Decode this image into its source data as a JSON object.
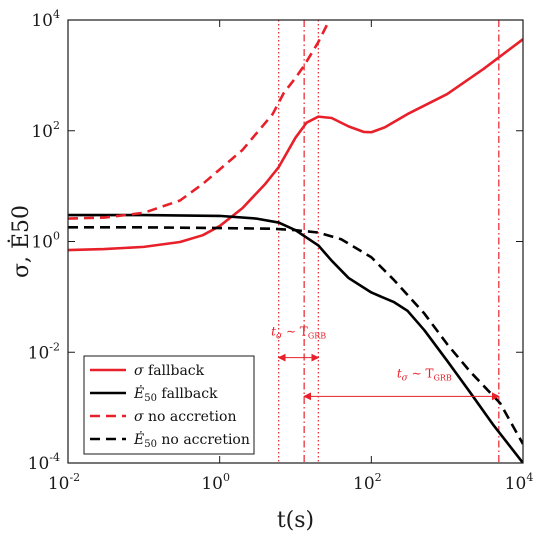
{
  "chart_data": {
    "type": "line",
    "title": "",
    "xlabel": "t(s)",
    "ylabel": "σ, Ė50",
    "xscale": "log",
    "yscale": "log",
    "xlim": [
      0.01,
      10000
    ],
    "ylim": [
      0.0001,
      10000
    ],
    "grid": false,
    "legend_placement": "bottom-left",
    "x_ticks": [
      {
        "base": "10",
        "exp": "-2",
        "value": 0.01
      },
      {
        "base": "10",
        "exp": "0",
        "value": 1
      },
      {
        "base": "10",
        "exp": "2",
        "value": 100
      },
      {
        "base": "10",
        "exp": "4",
        "value": 10000
      }
    ],
    "y_ticks": [
      {
        "base": "10",
        "exp": "-4",
        "value": 0.0001
      },
      {
        "base": "10",
        "exp": "-2",
        "value": 0.01
      },
      {
        "base": "10",
        "exp": "0",
        "value": 1
      },
      {
        "base": "10",
        "exp": "2",
        "value": 100
      },
      {
        "base": "10",
        "exp": "4",
        "value": 10000
      }
    ],
    "series": [
      {
        "name": "σ fallback",
        "color": "#e8202a",
        "dash": "solid",
        "points": [
          [
            0.01,
            0.7
          ],
          [
            0.03,
            0.73
          ],
          [
            0.1,
            0.8
          ],
          [
            0.3,
            0.98
          ],
          [
            0.6,
            1.3
          ],
          [
            1,
            1.9
          ],
          [
            2,
            4
          ],
          [
            4,
            11
          ],
          [
            6,
            22
          ],
          [
            10,
            75
          ],
          [
            14,
            140
          ],
          [
            20,
            180
          ],
          [
            30,
            170
          ],
          [
            50,
            120
          ],
          [
            80,
            95
          ],
          [
            100,
            94
          ],
          [
            150,
            115
          ],
          [
            300,
            200
          ],
          [
            1000,
            460
          ],
          [
            3000,
            1300
          ],
          [
            10000,
            4500
          ]
        ]
      },
      {
        "name": "Ė50 fallback",
        "color": "#000000",
        "dash": "solid",
        "points": [
          [
            0.01,
            3.0
          ],
          [
            0.1,
            3.0
          ],
          [
            1,
            2.9
          ],
          [
            3,
            2.6
          ],
          [
            6,
            2.2
          ],
          [
            10,
            1.6
          ],
          [
            20,
            0.85
          ],
          [
            30,
            0.45
          ],
          [
            50,
            0.22
          ],
          [
            100,
            0.12
          ],
          [
            200,
            0.08
          ],
          [
            300,
            0.056
          ],
          [
            500,
            0.025
          ],
          [
            1000,
            0.007
          ],
          [
            2000,
            0.0019
          ],
          [
            4000,
            0.0005
          ],
          [
            10000,
            0.0001
          ]
        ]
      },
      {
        "name": "σ no accretion",
        "color": "#e8202a",
        "dash": "dashed",
        "points": [
          [
            0.01,
            2.6
          ],
          [
            0.03,
            2.7
          ],
          [
            0.1,
            3.3
          ],
          [
            0.3,
            5.5
          ],
          [
            0.6,
            11
          ],
          [
            1,
            20
          ],
          [
            2,
            45
          ],
          [
            5,
            200
          ],
          [
            7,
            480
          ],
          [
            10,
            900
          ],
          [
            13,
            1500
          ],
          [
            20,
            4000
          ],
          [
            28,
            10000
          ]
        ]
      },
      {
        "name": "Ė50 no accretion",
        "color": "#000000",
        "dash": "dashed",
        "points": [
          [
            0.01,
            1.8
          ],
          [
            0.1,
            1.8
          ],
          [
            1,
            1.75
          ],
          [
            5,
            1.7
          ],
          [
            10,
            1.6
          ],
          [
            20,
            1.45
          ],
          [
            40,
            1.1
          ],
          [
            100,
            0.52
          ],
          [
            200,
            0.2
          ],
          [
            500,
            0.05
          ],
          [
            1000,
            0.014
          ],
          [
            2000,
            0.0045
          ],
          [
            5000,
            0.0012
          ],
          [
            10000,
            0.00022
          ]
        ]
      }
    ],
    "vertical_lines": [
      {
        "x": 6.0,
        "style": "dotted",
        "color": "#e8202a"
      },
      {
        "x": 13.0,
        "style": "dashdot",
        "color": "#e8202a"
      },
      {
        "x": 20.0,
        "style": "dotted",
        "color": "#e8202a"
      },
      {
        "x": 4800,
        "style": "dashdot",
        "color": "#e8202a"
      }
    ],
    "annotations": [
      {
        "text_main": "t",
        "text_sub": "σ",
        "text_rest": " ∼ T",
        "text_sub2": "GRB",
        "color": "#e8202a",
        "x_label": 11,
        "y_label": 0.02,
        "arrow_from": 6.0,
        "arrow_to": 20.0,
        "arrow_y": 0.008
      },
      {
        "text_main": "t",
        "text_sub": "σ",
        "text_rest": " ∼ T",
        "text_sub2": "GRB",
        "color": "#e8202a",
        "x_label": 500,
        "y_label": 0.0035,
        "arrow_from": 13.0,
        "arrow_to": 4800,
        "arrow_y": 0.0016
      }
    ]
  },
  "legend": {
    "items": [
      {
        "sym": "σ",
        "label": " fallback",
        "color": "#e8202a",
        "dash": "solid"
      },
      {
        "sym": "Ė",
        "sub": "50",
        "label": " fallback",
        "color": "#000000",
        "dash": "solid"
      },
      {
        "sym": "σ",
        "label": " no accretion",
        "color": "#e8202a",
        "dash": "dashed"
      },
      {
        "sym": "Ė",
        "sub": "50",
        "label": " no accretion",
        "color": "#000000",
        "dash": "dashed"
      }
    ]
  }
}
